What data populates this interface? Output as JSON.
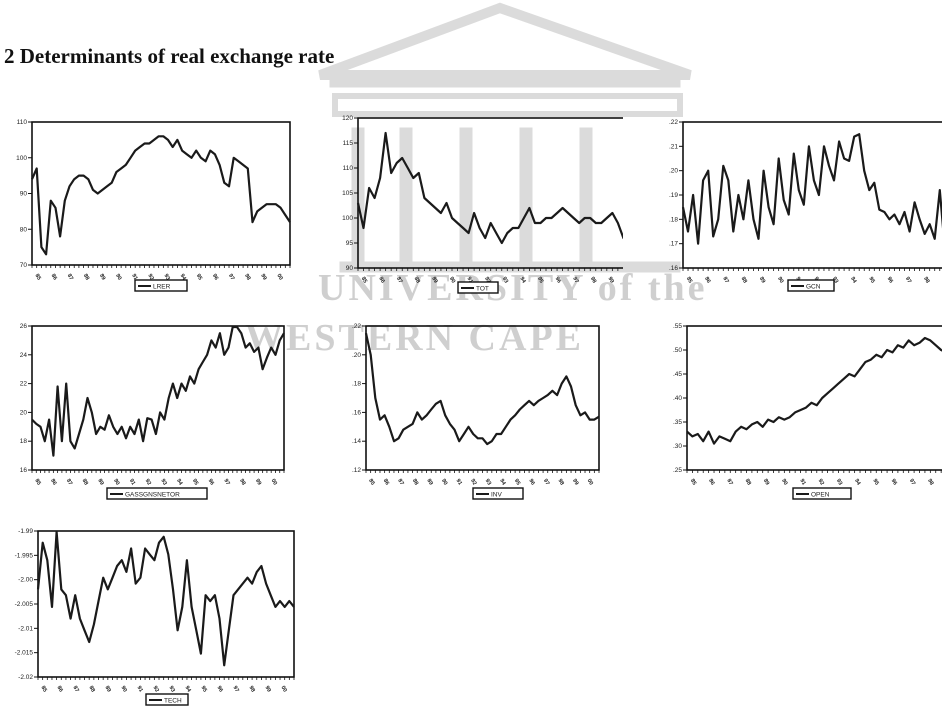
{
  "heading": "2 Determinants of real exchange rate",
  "watermark": {
    "line1": "UNIVERSITY of the",
    "line2": "WESTERN CAPE",
    "color": "#cfcfcf"
  },
  "colors": {
    "line": "#1a1a1a",
    "axis": "#111111"
  },
  "chart_data": [
    {
      "type": "line",
      "id": "lrer",
      "series": [
        {
          "name": "LRER"
        }
      ],
      "ylim": [
        70,
        110
      ],
      "yticks": [
        "110",
        "100",
        "90",
        "80",
        "70"
      ],
      "xticks": [
        "85",
        "86",
        "87",
        "88",
        "89",
        "90",
        "91",
        "92",
        "93",
        "94",
        "95",
        "96",
        "97",
        "98",
        "99",
        "00"
      ],
      "values": [
        94,
        97,
        75,
        73,
        88,
        86,
        78,
        88,
        92,
        94,
        95,
        95,
        94,
        91,
        90,
        91,
        92,
        93,
        96,
        97,
        98,
        100,
        102,
        103,
        104,
        104,
        105,
        106,
        106,
        105,
        103,
        105,
        102,
        101,
        100,
        102,
        100,
        99,
        102,
        101,
        98,
        93,
        92,
        100,
        99,
        98,
        97,
        82,
        85,
        86,
        87,
        87,
        87,
        86,
        84,
        82
      ]
    },
    {
      "type": "line",
      "id": "tot",
      "series": [
        {
          "name": "TOT"
        }
      ],
      "ylim": [
        90,
        120
      ],
      "yticks": [
        "120",
        "115",
        "110",
        "105",
        "100",
        "95",
        "90"
      ],
      "xticks": [
        "85",
        "86",
        "87",
        "88",
        "89",
        "90",
        "91",
        "92",
        "93",
        "94",
        "95",
        "96",
        "97",
        "98",
        "99",
        "00"
      ],
      "values": [
        103,
        98,
        106,
        104,
        108,
        117,
        109,
        111,
        112,
        110,
        108,
        109,
        104,
        103,
        102,
        101,
        103,
        100,
        99,
        98,
        97,
        101,
        98,
        96,
        99,
        97,
        95,
        97,
        98,
        98,
        100,
        102,
        99,
        99,
        100,
        100,
        101,
        102,
        101,
        100,
        99,
        100,
        100,
        99,
        99,
        100,
        101,
        99,
        96,
        95,
        96,
        96
      ]
    },
    {
      "type": "line",
      "id": "gcn",
      "series": [
        {
          "name": "GCN"
        }
      ],
      "ylim": [
        0.16,
        0.22
      ],
      "yticks": [
        ".22",
        ".21",
        ".20",
        ".19",
        ".18",
        ".17",
        ".16"
      ],
      "xticks": [
        "85",
        "86",
        "87",
        "88",
        "89",
        "90",
        "91",
        "92",
        "93",
        "94",
        "95",
        "96",
        "97",
        "98",
        "99",
        "00"
      ],
      "values": [
        0.185,
        0.175,
        0.19,
        0.17,
        0.196,
        0.2,
        0.173,
        0.18,
        0.202,
        0.196,
        0.175,
        0.19,
        0.18,
        0.196,
        0.18,
        0.172,
        0.2,
        0.185,
        0.178,
        0.205,
        0.188,
        0.182,
        0.207,
        0.192,
        0.186,
        0.21,
        0.196,
        0.19,
        0.21,
        0.202,
        0.196,
        0.212,
        0.205,
        0.204,
        0.214,
        0.215,
        0.2,
        0.192,
        0.195,
        0.184,
        0.183,
        0.18,
        0.182,
        0.178,
        0.183,
        0.175,
        0.187,
        0.18,
        0.174,
        0.178,
        0.172,
        0.192,
        0.168,
        0.188,
        0.163,
        0.17,
        0.173,
        0.166,
        0.162
      ]
    },
    {
      "type": "line",
      "id": "gassgnsnetor",
      "series": [
        {
          "name": "GASSGNSNETOR"
        }
      ],
      "ylim": [
        16,
        26
      ],
      "yticks": [
        "26",
        "24",
        "22",
        "20",
        "18",
        "16"
      ],
      "xticks": [
        "85",
        "86",
        "87",
        "88",
        "89",
        "90",
        "91",
        "92",
        "93",
        "94",
        "95",
        "96",
        "97",
        "98",
        "99",
        "00"
      ],
      "values": [
        19.5,
        19.2,
        19,
        18,
        19.5,
        17,
        21.8,
        18,
        22,
        18,
        17.5,
        18.5,
        19.5,
        21,
        20,
        18.5,
        19,
        18.8,
        19.8,
        19,
        18.5,
        19,
        18.2,
        19,
        18.5,
        19.5,
        18,
        19.6,
        19.5,
        18.5,
        20,
        19.5,
        21,
        22,
        21,
        22,
        21.5,
        22.5,
        22,
        23,
        23.5,
        24,
        25,
        24.5,
        25.5,
        24,
        24.5,
        26,
        26.2,
        25.5,
        24.5,
        24.8,
        24.2,
        24.5,
        23,
        23.8,
        24.5,
        24,
        25,
        25.5
      ]
    },
    {
      "type": "line",
      "id": "inv",
      "series": [
        {
          "name": "INV"
        }
      ],
      "ylim": [
        0.12,
        0.22
      ],
      "yticks": [
        ".22",
        ".20",
        ".18",
        ".16",
        ".14",
        ".12"
      ],
      "xticks": [
        "85",
        "86",
        "87",
        "88",
        "89",
        "90",
        "91",
        "92",
        "93",
        "94",
        "95",
        "96",
        "97",
        "98",
        "99",
        "00"
      ],
      "values": [
        0.215,
        0.2,
        0.17,
        0.155,
        0.158,
        0.15,
        0.14,
        0.142,
        0.148,
        0.15,
        0.152,
        0.16,
        0.155,
        0.158,
        0.162,
        0.166,
        0.168,
        0.158,
        0.152,
        0.148,
        0.14,
        0.145,
        0.15,
        0.145,
        0.142,
        0.142,
        0.138,
        0.14,
        0.145,
        0.145,
        0.15,
        0.155,
        0.158,
        0.162,
        0.165,
        0.168,
        0.165,
        0.168,
        0.17,
        0.172,
        0.175,
        0.172,
        0.18,
        0.185,
        0.178,
        0.165,
        0.158,
        0.16,
        0.155,
        0.155,
        0.157
      ]
    },
    {
      "type": "line",
      "id": "open",
      "series": [
        {
          "name": "OPEN"
        }
      ],
      "ylim": [
        0.25,
        0.55
      ],
      "yticks": [
        ".55",
        ".50",
        ".45",
        ".40",
        ".35",
        ".30",
        ".25"
      ],
      "xticks": [
        "85",
        "86",
        "87",
        "88",
        "89",
        "90",
        "91",
        "92",
        "93",
        "94",
        "95",
        "96",
        "97",
        "98",
        "99",
        "00"
      ],
      "values": [
        0.33,
        0.32,
        0.325,
        0.31,
        0.33,
        0.305,
        0.32,
        0.315,
        0.31,
        0.33,
        0.34,
        0.335,
        0.345,
        0.35,
        0.34,
        0.355,
        0.35,
        0.36,
        0.355,
        0.36,
        0.37,
        0.375,
        0.38,
        0.39,
        0.385,
        0.4,
        0.41,
        0.42,
        0.43,
        0.44,
        0.45,
        0.445,
        0.46,
        0.475,
        0.48,
        0.49,
        0.485,
        0.5,
        0.495,
        0.51,
        0.505,
        0.52,
        0.51,
        0.515,
        0.525,
        0.52,
        0.51,
        0.5,
        0.495,
        0.49,
        0.5,
        0.505,
        0.51,
        0.495,
        0.49
      ]
    },
    {
      "type": "line",
      "id": "tech",
      "series": [
        {
          "name": "TECH"
        }
      ],
      "ylim": [
        -2.02,
        -1.995
      ],
      "yticks": [
        "-1.99",
        "-1.995",
        "-2.00",
        "-2.005",
        "-2.01",
        "-2.015",
        "-2.02"
      ],
      "xticks": [
        "85",
        "86",
        "87",
        "88",
        "89",
        "90",
        "91",
        "92",
        "93",
        "94",
        "95",
        "96",
        "97",
        "98",
        "99",
        "00"
      ],
      "values": [
        -2.005,
        -1.997,
        -2.0,
        -2.008,
        -1.994,
        -2.005,
        -2.006,
        -2.01,
        -2.006,
        -2.01,
        -2.012,
        -2.014,
        -2.011,
        -2.007,
        -2.003,
        -2.005,
        -2.003,
        -2.001,
        -2.0,
        -2.002,
        -1.998,
        -2.004,
        -2.003,
        -1.998,
        -1.999,
        -2.0,
        -1.997,
        -1.996,
        -1.999,
        -2.005,
        -2.012,
        -2.008,
        -2.0,
        -2.008,
        -2.012,
        -2.016,
        -2.006,
        -2.007,
        -2.006,
        -2.01,
        -2.018,
        -2.012,
        -2.006,
        -2.005,
        -2.004,
        -2.003,
        -2.004,
        -2.002,
        -2.001,
        -2.004,
        -2.006,
        -2.008,
        -2.007,
        -2.008,
        -2.007,
        -2.008
      ]
    }
  ]
}
